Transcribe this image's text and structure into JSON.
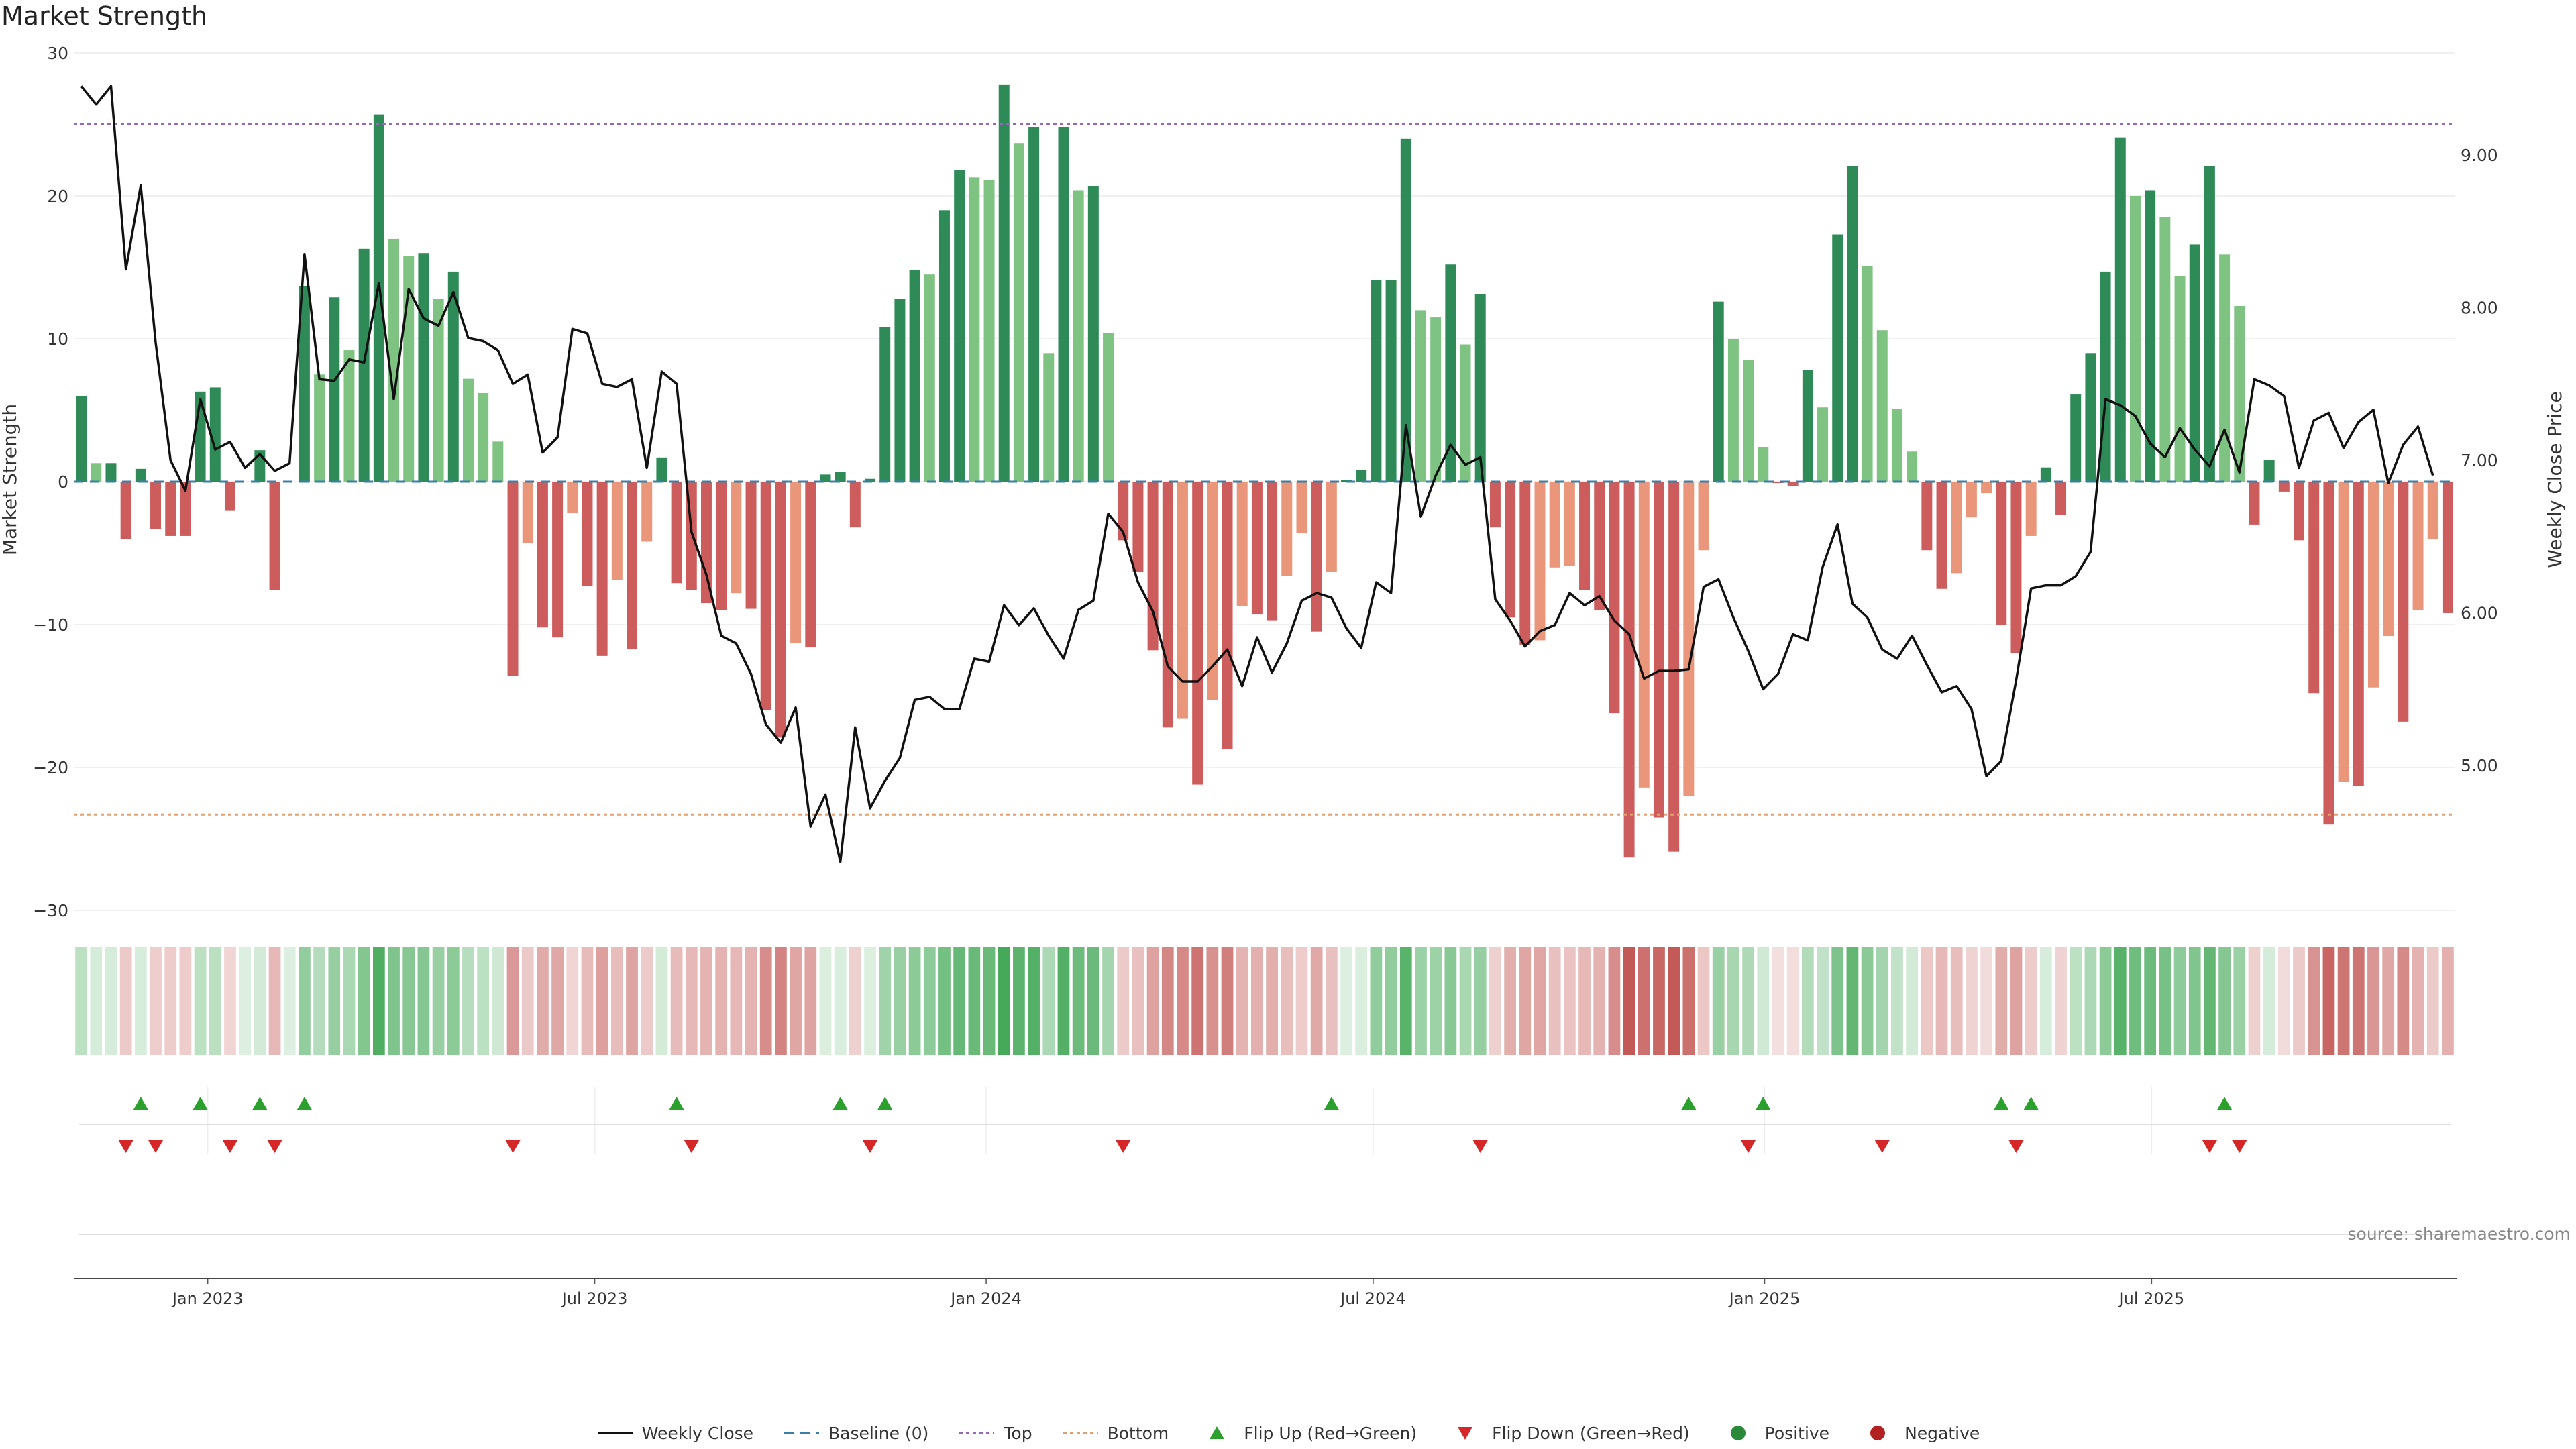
{
  "chart_data": {
    "type": "bar",
    "title": "Market Strength",
    "ylabel": "Market Strength",
    "y2label": "Weekly Close Price",
    "ylim": [
      -30,
      30
    ],
    "y2lim": [
      4.2,
      9.6
    ],
    "yticks": [
      30,
      20,
      10,
      0,
      -10,
      -20,
      -30
    ],
    "yticklabels": [
      "30",
      "20",
      "10",
      "0",
      "−10",
      "−20",
      "−30"
    ],
    "y2ticks": [
      5.0,
      6.0,
      7.0,
      8.0,
      9.0
    ],
    "y2ticklabels": [
      "5.00",
      "6.00",
      "7.00",
      "8.00",
      "9.00"
    ],
    "top_level": 25,
    "bottom_level": -23.3,
    "xticks": [
      {
        "label": "Jan 2023",
        "week": 9
      },
      {
        "label": "Jul 2023",
        "week": 35
      },
      {
        "label": "Jan 2024",
        "week": 61.3
      },
      {
        "label": "Jul 2024",
        "week": 87.3
      },
      {
        "label": "Jan 2025",
        "week": 113.6
      },
      {
        "label": "Jul 2025",
        "week": 139.6
      }
    ],
    "strength": [
      6,
      1.3,
      1.3,
      -4,
      0.9,
      -3.3,
      -3.8,
      -3.8,
      6.3,
      6.6,
      -2,
      0,
      2.2,
      -7.6,
      0,
      13.7,
      7.5,
      12.9,
      9.2,
      16.3,
      25.7,
      17,
      15.8,
      16,
      12.8,
      14.7,
      7.2,
      6.2,
      2.8,
      -13.6,
      -4.3,
      -10.2,
      -10.9,
      -2.2,
      -7.3,
      -12.2,
      -6.9,
      -11.7,
      -4.2,
      1.7,
      -7.1,
      -7.6,
      -8.5,
      -9,
      -7.8,
      -8.9,
      -16,
      -17.9,
      -11.3,
      -11.6,
      0.5,
      0.7,
      -3.2,
      0.2,
      10.8,
      12.8,
      14.8,
      14.5,
      19,
      21.8,
      21.3,
      21.1,
      27.8,
      23.7,
      24.8,
      9,
      24.8,
      20.4,
      20.7,
      10.4,
      -4.1,
      -6.3,
      -11.8,
      -17.2,
      -16.6,
      -21.2,
      -15.3,
      -18.7,
      -8.7,
      -9.3,
      -9.7,
      -6.6,
      -3.6,
      -10.5,
      -6.3,
      0.1,
      0.8,
      14.1,
      14.1,
      24,
      12,
      11.5,
      15.2,
      9.6,
      13.1,
      -3.2,
      -9.5,
      -11.4,
      -11.1,
      -6,
      -5.9,
      -7.6,
      -9,
      -16.2,
      -26.3,
      -21.4,
      -23.5,
      -25.9,
      -22,
      -4.8,
      12.6,
      10,
      8.5,
      2.4,
      -0.1,
      -0.3,
      7.8,
      5.2,
      17.3,
      22.1,
      15.1,
      10.6,
      5.1,
      2.1,
      -4.8,
      -7.5,
      -6.4,
      -2.5,
      -0.8,
      -10,
      -12,
      -3.8,
      1,
      -2.3,
      6.1,
      9,
      14.7,
      24.1,
      20,
      20.4,
      18.5,
      14.4,
      16.6,
      22.1,
      15.9,
      12.3,
      -3,
      1.5,
      -0.7,
      -4.1,
      -14.8,
      -24,
      -21,
      -21.3,
      -14.4,
      -10.8,
      -16.8,
      -9,
      -4,
      -9.2
    ],
    "weekly_close": [
      9.45,
      9.33,
      9.45,
      8.25,
      8.8,
      7.77,
      7.0,
      6.8,
      7.4,
      7.07,
      7.12,
      6.95,
      7.04,
      6.93,
      6.98,
      8.35,
      7.53,
      7.52,
      7.66,
      7.64,
      8.16,
      7.4,
      8.12,
      7.93,
      7.88,
      8.1,
      7.8,
      7.78,
      7.72,
      7.5,
      7.56,
      7.05,
      7.15,
      7.86,
      7.83,
      7.5,
      7.48,
      7.53,
      6.95,
      7.58,
      7.5,
      6.53,
      6.25,
      5.85,
      5.8,
      5.6,
      5.27,
      5.15,
      5.38,
      4.6,
      4.81,
      4.37,
      5.25,
      4.72,
      4.9,
      5.05,
      5.43,
      5.45,
      5.37,
      5.37,
      5.7,
      5.68,
      6.05,
      5.92,
      6.03,
      5.85,
      5.7,
      6.02,
      6.08,
      6.65,
      6.53,
      6.2,
      6.01,
      5.65,
      5.55,
      5.55,
      5.65,
      5.76,
      5.52,
      5.84,
      5.61,
      5.8,
      6.08,
      6.13,
      6.1,
      5.9,
      5.77,
      6.2,
      6.13,
      7.23,
      6.63,
      6.9,
      7.1,
      6.97,
      7.02,
      6.09,
      5.95,
      5.78,
      5.88,
      5.92,
      6.13,
      6.05,
      6.11,
      5.95,
      5.86,
      5.57,
      5.62,
      5.62,
      5.63,
      6.17,
      6.22,
      5.97,
      5.75,
      5.5,
      5.6,
      5.86,
      5.82,
      6.3,
      6.58,
      6.06,
      5.97,
      5.76,
      5.7,
      5.85,
      5.66,
      5.48,
      5.52,
      5.37,
      4.93,
      5.03,
      5.56,
      6.16,
      6.18,
      6.18,
      6.24,
      6.4,
      7.4,
      7.36,
      7.29,
      7.11,
      7.02,
      7.21,
      7.07,
      6.96,
      7.2,
      6.92,
      7.53,
      7.49,
      7.42,
      6.95,
      7.26,
      7.31,
      7.08,
      7.25,
      7.33,
      6.85,
      7.1,
      7.22,
      6.9
    ],
    "flip_up_weeks": [
      4,
      8,
      12,
      15,
      40,
      51,
      54,
      84,
      108,
      113,
      129,
      131,
      144
    ],
    "flip_down_weeks": [
      3,
      5,
      10,
      13,
      29,
      41,
      53,
      70,
      94,
      112,
      121,
      130,
      143,
      145
    ],
    "source_label": "source: sharemaestro.com",
    "legend": [
      {
        "key": "weekly_close",
        "label": "Weekly Close",
        "color": "#111111"
      },
      {
        "key": "baseline",
        "label": "Baseline (0)",
        "color": "#3a7fa8"
      },
      {
        "key": "top",
        "label": "Top",
        "color": "#9467bd"
      },
      {
        "key": "bottom",
        "label": "Bottom",
        "color": "#e0a070"
      },
      {
        "key": "flip_up",
        "label": "Flip Up (Red→Green)",
        "color": "#2ca02c"
      },
      {
        "key": "flip_down",
        "label": "Flip Down (Green→Red)",
        "color": "#d62728"
      },
      {
        "key": "positive",
        "label": "Positive",
        "color": "#2a8a3a"
      },
      {
        "key": "negative",
        "label": "Negative",
        "color": "#b22222"
      }
    ],
    "colors": {
      "pos_strong": "#2e8b57",
      "pos_weak": "#7fc383",
      "neg_strong": "#cd5c5c",
      "neg_weak": "#e9967a",
      "strip_pos": "#43a857",
      "strip_neg": "#c0504d",
      "top_line": "#9467bd",
      "bottom_line": "#e0a070",
      "baseline": "#3a7fa8",
      "price_line": "#111111"
    }
  }
}
